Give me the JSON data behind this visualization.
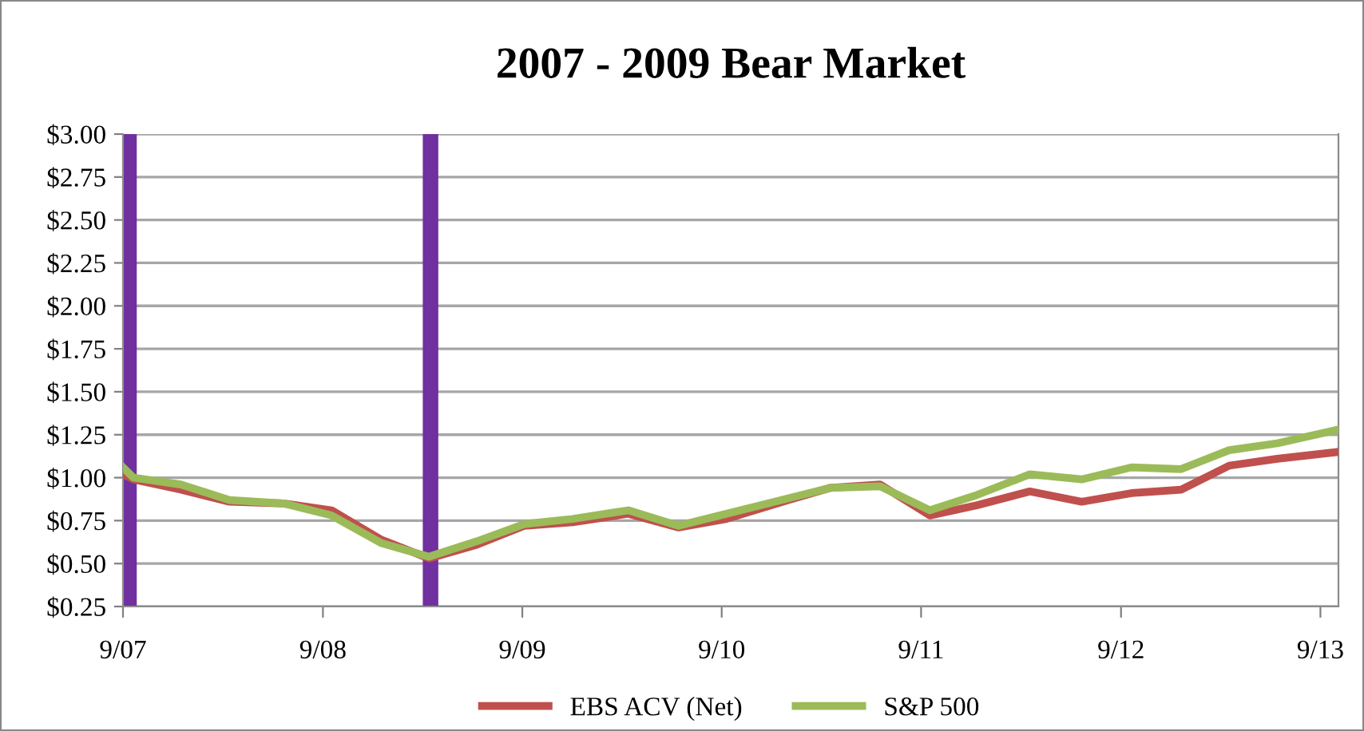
{
  "chart_data": {
    "type": "line",
    "title": "2007 - 2009 Bear Market",
    "x": [
      "2007-09-01",
      "2007-09-20",
      "2007-12-16",
      "2008-03-14",
      "2008-06-21",
      "2008-09-17",
      "2008-12-16",
      "2009-03-14",
      "2009-06-10",
      "2009-09-05",
      "2009-12-02",
      "2010-03-14",
      "2010-06-14",
      "2010-09-10",
      "2011-01-01",
      "2011-03-18",
      "2011-06-18",
      "2011-09-17",
      "2011-12-13",
      "2012-03-18",
      "2012-06-21",
      "2012-09-20",
      "2012-12-20",
      "2013-03-18",
      "2013-06-14",
      "2013-10-04"
    ],
    "series": [
      {
        "name": "EBS ACV (Net)",
        "color": "#c0504d",
        "values": [
          1.02,
          0.99,
          0.93,
          0.86,
          0.85,
          0.81,
          0.64,
          0.53,
          0.61,
          0.72,
          0.74,
          0.79,
          0.71,
          0.76,
          0.87,
          0.94,
          0.96,
          0.78,
          0.84,
          0.92,
          0.86,
          0.91,
          0.93,
          1.07,
          1.11,
          1.15
        ]
      },
      {
        "name": "S&P 500",
        "color": "#9bbb59",
        "values": [
          1.06,
          1.0,
          0.96,
          0.87,
          0.85,
          0.78,
          0.62,
          0.54,
          0.63,
          0.73,
          0.76,
          0.81,
          0.72,
          0.79,
          0.88,
          0.94,
          0.95,
          0.81,
          0.9,
          1.02,
          0.99,
          1.06,
          1.05,
          1.16,
          1.2,
          1.28
        ]
      }
    ],
    "xlim": [
      "2007-09-01",
      "2013-10-04"
    ],
    "xticks": [
      {
        "value": "2007-09-01",
        "label": "9/07"
      },
      {
        "value": "2008-09-01",
        "label": "9/08"
      },
      {
        "value": "2009-09-01",
        "label": "9/09"
      },
      {
        "value": "2010-09-01",
        "label": "9/10"
      },
      {
        "value": "2011-09-01",
        "label": "9/11"
      },
      {
        "value": "2012-09-01",
        "label": "9/12"
      },
      {
        "value": "2013-09-01",
        "label": "9/13"
      }
    ],
    "ylim": [
      0.25,
      3.0
    ],
    "yticks": [
      {
        "value": 0.25,
        "label": "$0.25"
      },
      {
        "value": 0.5,
        "label": "$0.50"
      },
      {
        "value": 0.75,
        "label": "$0.75"
      },
      {
        "value": 1.0,
        "label": "$1.00"
      },
      {
        "value": 1.25,
        "label": "$1.25"
      },
      {
        "value": 1.5,
        "label": "$1.50"
      },
      {
        "value": 1.75,
        "label": "$1.75"
      },
      {
        "value": 2.0,
        "label": "$2.00"
      },
      {
        "value": 2.25,
        "label": "$2.25"
      },
      {
        "value": 2.5,
        "label": "$2.50"
      },
      {
        "value": 2.75,
        "label": "$2.75"
      },
      {
        "value": 3.0,
        "label": "$3.00"
      }
    ],
    "ref_lines": [
      {
        "axis": "x",
        "value": "2007-09-12",
        "color": "#7030a0"
      },
      {
        "axis": "x",
        "value": "2009-03-17",
        "color": "#7030a0"
      }
    ],
    "grid": "y",
    "legend": "bottom",
    "marker": "none",
    "line_style": "solid"
  }
}
